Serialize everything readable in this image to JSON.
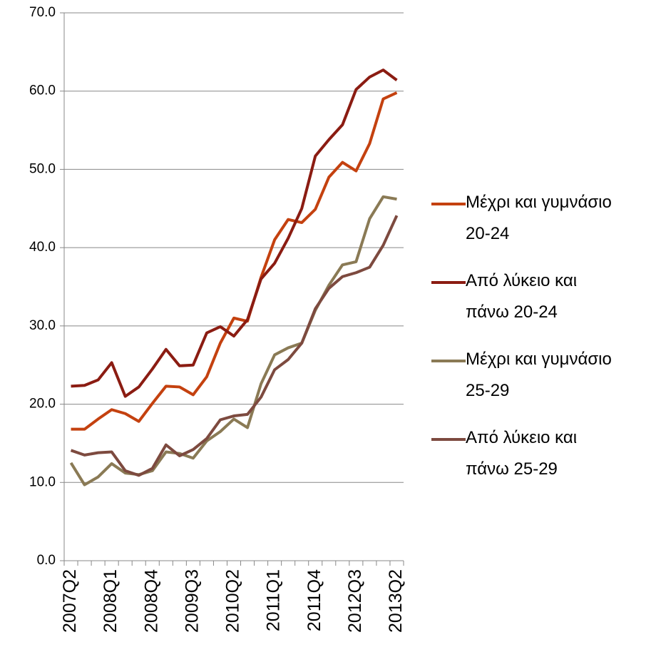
{
  "chart_data": {
    "type": "line",
    "categories": [
      "2007Q2",
      null,
      null,
      "2008Q1",
      null,
      null,
      "2008Q4",
      null,
      null,
      "2009Q3",
      null,
      null,
      "2010Q2",
      null,
      null,
      "2011Q1",
      null,
      null,
      "2011Q4",
      null,
      null,
      "2012Q3",
      null,
      null,
      "2013Q2"
    ],
    "series": [
      {
        "name": "Μέχρι και γυμνάσιο 20-24",
        "color": "#c4410f",
        "values": [
          16.8,
          16.8,
          18.1,
          19.3,
          18.8,
          17.8,
          20.1,
          22.3,
          22.2,
          21.2,
          23.5,
          27.8,
          31.0,
          30.6,
          36.2,
          41.0,
          43.6,
          43.2,
          44.9,
          49.0,
          50.9,
          49.8,
          53.3,
          59.0,
          59.8
        ]
      },
      {
        "name": "Από λύκειο και πάνω 20-24",
        "color": "#8b1c12",
        "values": [
          22.3,
          22.4,
          23.1,
          25.3,
          21.0,
          22.2,
          24.5,
          27.0,
          24.9,
          25.0,
          29.1,
          29.9,
          28.7,
          30.8,
          36.0,
          38.0,
          41.2,
          45.0,
          51.7,
          53.8,
          55.7,
          60.2,
          61.8,
          62.7,
          61.4
        ]
      },
      {
        "name": "Μέχρι και γυμνάσιο 25-29",
        "color": "#8a7a55",
        "values": [
          12.5,
          9.7,
          10.7,
          12.4,
          11.2,
          11.0,
          11.5,
          13.9,
          13.7,
          13.1,
          15.3,
          16.5,
          18.1,
          17.0,
          22.6,
          26.3,
          27.2,
          27.8,
          32.0,
          35.2,
          37.8,
          38.2,
          43.7,
          46.5,
          46.2
        ]
      },
      {
        "name": "Από λύκειο και πάνω 25-29",
        "color": "#7d4a3f",
        "values": [
          14.1,
          13.5,
          13.8,
          13.9,
          11.5,
          10.9,
          11.8,
          14.8,
          13.4,
          14.2,
          15.6,
          18.0,
          18.5,
          18.7,
          20.9,
          24.4,
          25.7,
          27.8,
          32.2,
          34.8,
          36.3,
          36.8,
          37.5,
          40.3,
          44.1
        ]
      }
    ],
    "ylim": [
      0,
      70
    ],
    "yticks": [
      {
        "value": 0,
        "label": "0.0"
      },
      {
        "value": 10,
        "label": "10.0"
      },
      {
        "value": 20,
        "label": "20.0"
      },
      {
        "value": 30,
        "label": "30.0"
      },
      {
        "value": 40,
        "label": "40.0"
      },
      {
        "value": 50,
        "label": "50.0"
      },
      {
        "value": 60,
        "label": "60.0"
      },
      {
        "value": 70,
        "label": "70.0"
      }
    ],
    "grid": true,
    "legend": "right"
  }
}
